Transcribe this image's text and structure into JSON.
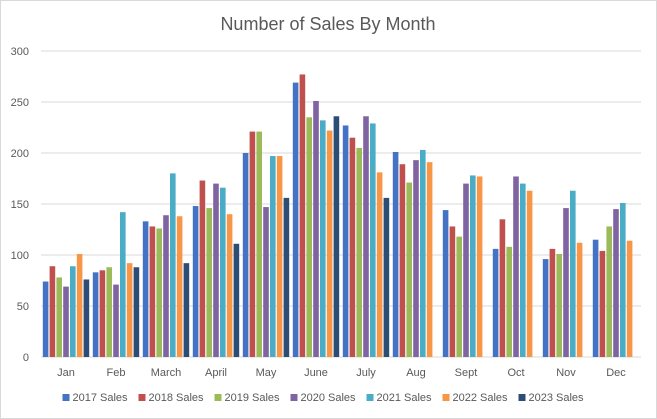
{
  "chart_data": {
    "type": "bar",
    "title": "Number of Sales By Month",
    "xlabel": "",
    "ylabel": "",
    "ylim": [
      0,
      300
    ],
    "yticks": [
      0,
      50,
      100,
      150,
      200,
      250,
      300
    ],
    "grid": true,
    "legend_position": "bottom",
    "categories": [
      "Jan",
      "Feb",
      "March",
      "April",
      "May",
      "June",
      "July",
      "Aug",
      "Sept",
      "Oct",
      "Nov",
      "Dec"
    ],
    "series": [
      {
        "name": "2017 Sales",
        "color": "#4472c4",
        "values": [
          74,
          83,
          133,
          148,
          200,
          269,
          227,
          201,
          144,
          106,
          96,
          115
        ]
      },
      {
        "name": "2018 Sales",
        "color": "#c0504d",
        "values": [
          89,
          85,
          128,
          173,
          221,
          277,
          215,
          189,
          128,
          135,
          106,
          104
        ]
      },
      {
        "name": "2019 Sales",
        "color": "#9bbb59",
        "values": [
          78,
          88,
          126,
          146,
          221,
          235,
          205,
          171,
          118,
          108,
          101,
          128
        ]
      },
      {
        "name": "2020 Sales",
        "color": "#8064a2",
        "values": [
          69,
          71,
          139,
          170,
          147,
          251,
          236,
          193,
          170,
          177,
          146,
          145
        ]
      },
      {
        "name": "2021 Sales",
        "color": "#4bacc6",
        "values": [
          89,
          142,
          180,
          166,
          197,
          232,
          229,
          203,
          178,
          170,
          163,
          151
        ]
      },
      {
        "name": "2022 Sales",
        "color": "#f79646",
        "values": [
          101,
          92,
          138,
          140,
          197,
          222,
          181,
          191,
          177,
          163,
          112,
          114
        ]
      },
      {
        "name": "2023 Sales",
        "color": "#2c4d75",
        "values": [
          76,
          88,
          92,
          111,
          156,
          236,
          156,
          null,
          null,
          null,
          null,
          null
        ]
      }
    ]
  }
}
